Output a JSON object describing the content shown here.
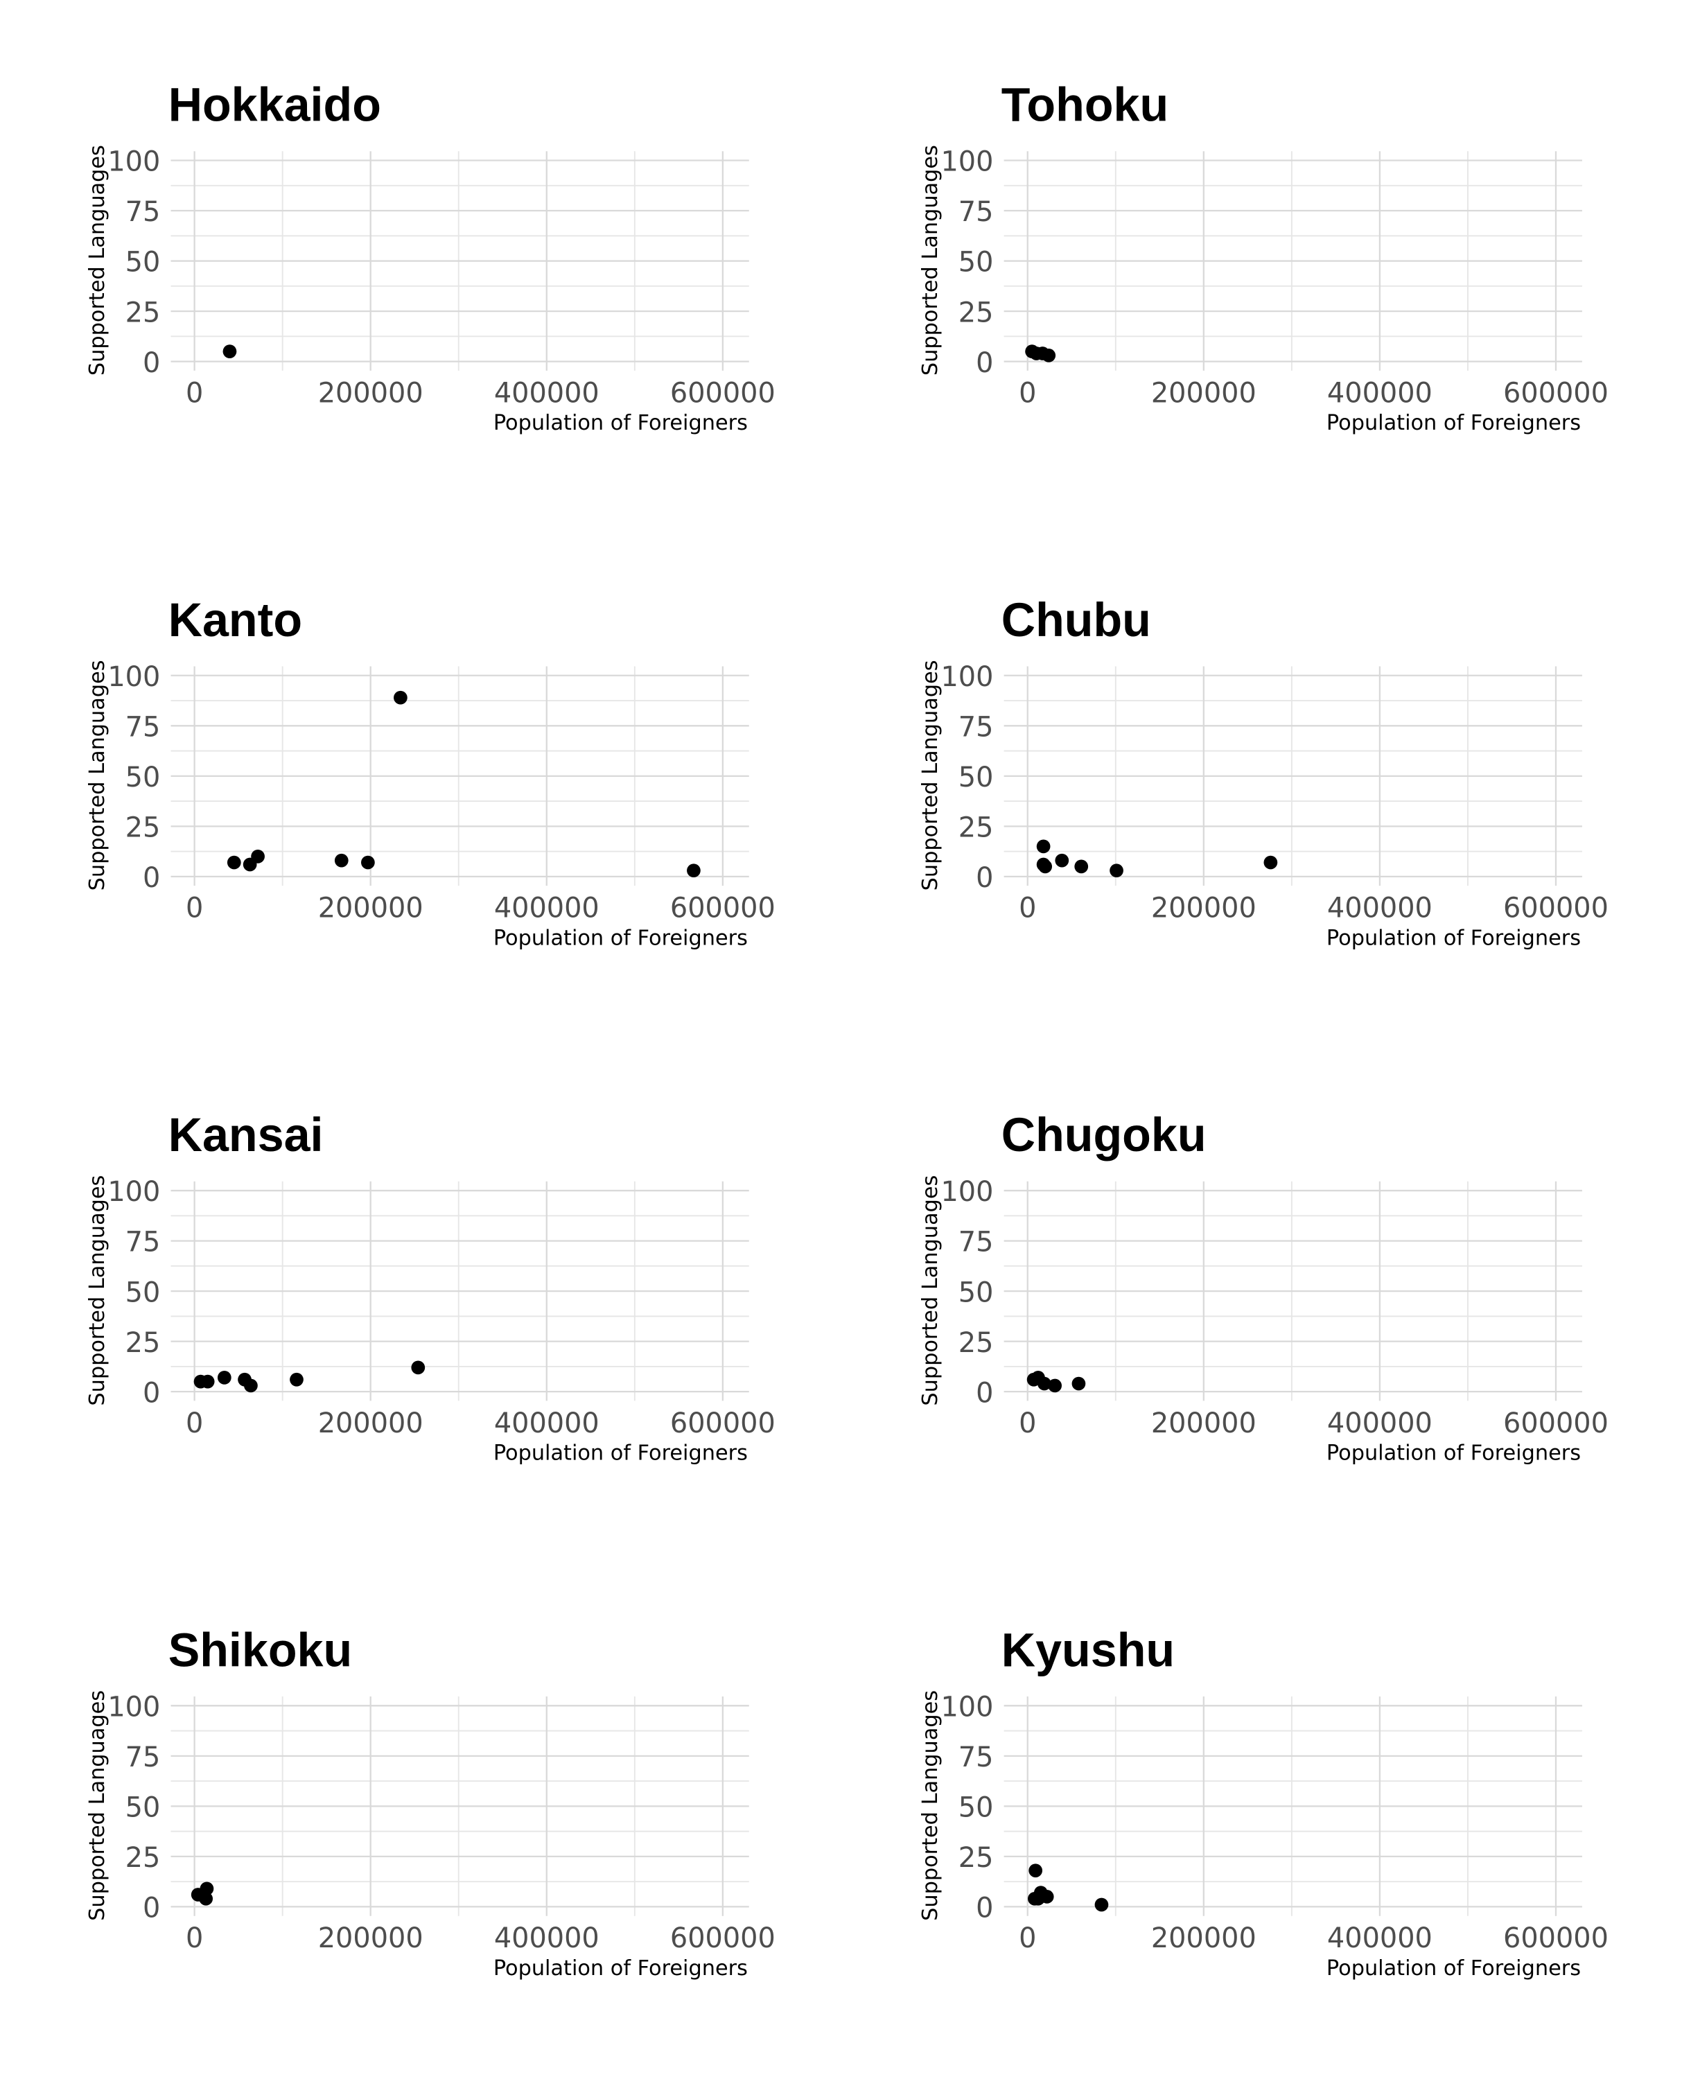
{
  "chart_data": [
    {
      "type": "scatter",
      "title": "Hokkaido",
      "xlabel": "Population of Foreigners",
      "ylabel": "Supported Languages",
      "xlim": [
        0,
        600000
      ],
      "ylim": [
        0,
        100
      ],
      "xticks": [
        "0",
        "200000",
        "400000",
        "600000"
      ],
      "yticks": [
        "0",
        "25",
        "50",
        "75",
        "100"
      ],
      "grid": true,
      "points": [
        [
          40000,
          5
        ]
      ]
    },
    {
      "type": "scatter",
      "title": "Tohoku",
      "xlabel": "Population of Foreigners",
      "ylabel": "Supported Languages",
      "xlim": [
        0,
        600000
      ],
      "ylim": [
        0,
        100
      ],
      "xticks": [
        "0",
        "200000",
        "400000",
        "600000"
      ],
      "yticks": [
        "0",
        "25",
        "50",
        "75",
        "100"
      ],
      "grid": true,
      "points": [
        [
          5000,
          5
        ],
        [
          10000,
          4
        ],
        [
          17000,
          4
        ],
        [
          24000,
          3
        ]
      ]
    },
    {
      "type": "scatter",
      "title": "Kanto",
      "xlabel": "Population of Foreigners",
      "ylabel": "Supported Languages",
      "xlim": [
        0,
        600000
      ],
      "ylim": [
        0,
        100
      ],
      "xticks": [
        "0",
        "200000",
        "400000",
        "600000"
      ],
      "yticks": [
        "0",
        "25",
        "50",
        "75",
        "100"
      ],
      "grid": true,
      "points": [
        [
          45000,
          7
        ],
        [
          63000,
          6
        ],
        [
          72000,
          10
        ],
        [
          167000,
          8
        ],
        [
          197000,
          7
        ],
        [
          234000,
          89
        ],
        [
          567000,
          3
        ]
      ]
    },
    {
      "type": "scatter",
      "title": "Chubu",
      "xlabel": "Population of Foreigners",
      "ylabel": "Supported Languages",
      "xlim": [
        0,
        600000
      ],
      "ylim": [
        0,
        100
      ],
      "xticks": [
        "0",
        "200000",
        "400000",
        "600000"
      ],
      "yticks": [
        "0",
        "25",
        "50",
        "75",
        "100"
      ],
      "grid": true,
      "points": [
        [
          18000,
          15
        ],
        [
          18000,
          6
        ],
        [
          20000,
          5
        ],
        [
          39000,
          8
        ],
        [
          61000,
          5
        ],
        [
          101000,
          3
        ],
        [
          276000,
          7
        ]
      ]
    },
    {
      "type": "scatter",
      "title": "Kansai",
      "xlabel": "Population of Foreigners",
      "ylabel": "Supported Languages",
      "xlim": [
        0,
        600000
      ],
      "ylim": [
        0,
        100
      ],
      "xticks": [
        "0",
        "200000",
        "400000",
        "600000"
      ],
      "yticks": [
        "0",
        "25",
        "50",
        "75",
        "100"
      ],
      "grid": true,
      "points": [
        [
          7000,
          5
        ],
        [
          15000,
          5
        ],
        [
          34000,
          7
        ],
        [
          57000,
          6
        ],
        [
          64000,
          3
        ],
        [
          116000,
          6
        ],
        [
          254000,
          12
        ]
      ]
    },
    {
      "type": "scatter",
      "title": "Chugoku",
      "xlabel": "Population of Foreigners",
      "ylabel": "Supported Languages",
      "xlim": [
        0,
        600000
      ],
      "ylim": [
        0,
        100
      ],
      "xticks": [
        "0",
        "200000",
        "400000",
        "600000"
      ],
      "yticks": [
        "0",
        "25",
        "50",
        "75",
        "100"
      ],
      "grid": true,
      "points": [
        [
          7000,
          6
        ],
        [
          12000,
          7
        ],
        [
          19000,
          4
        ],
        [
          31000,
          3
        ],
        [
          58000,
          4
        ]
      ]
    },
    {
      "type": "scatter",
      "title": "Shikoku",
      "xlabel": "Population of Foreigners",
      "ylabel": "Supported Languages",
      "xlim": [
        0,
        600000
      ],
      "ylim": [
        0,
        100
      ],
      "xticks": [
        "0",
        "200000",
        "400000",
        "600000"
      ],
      "yticks": [
        "0",
        "25",
        "50",
        "75",
        "100"
      ],
      "grid": true,
      "points": [
        [
          4000,
          6
        ],
        [
          9000,
          6
        ],
        [
          14000,
          9
        ],
        [
          13000,
          4
        ]
      ]
    },
    {
      "type": "scatter",
      "title": "Kyushu",
      "xlabel": "Population of Foreigners",
      "ylabel": "Supported Languages",
      "xlim": [
        0,
        600000
      ],
      "ylim": [
        0,
        100
      ],
      "xticks": [
        "0",
        "200000",
        "400000",
        "600000"
      ],
      "yticks": [
        "0",
        "25",
        "50",
        "75",
        "100"
      ],
      "grid": true,
      "points": [
        [
          9000,
          18
        ],
        [
          8000,
          4
        ],
        [
          15000,
          7
        ],
        [
          22000,
          5
        ],
        [
          12000,
          4
        ],
        [
          84000,
          1
        ]
      ]
    }
  ],
  "colors": {
    "point": "#000000",
    "grid": "#d9d9d9"
  }
}
